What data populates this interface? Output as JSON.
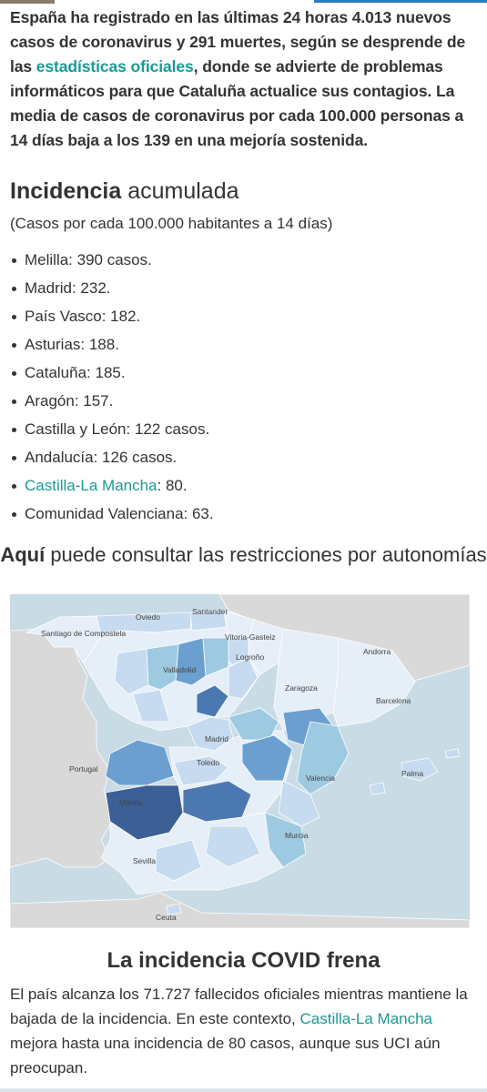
{
  "intro": {
    "part1": "España ha registrado en las últimas 24 horas 4.013 nuevos casos de coronavirus y 291 muertes, según se desprende de las ",
    "link": "estadísticas oficiales",
    "part2": ", donde se advierte de problemas informáticos para que Cataluña actualice sus contagios. La media de casos de coronavirus por cada 100.000 personas a 14 días baja a los 139 en una mejoría sostenida."
  },
  "incidence": {
    "title_bold": "Incidencia",
    "title_rest": " acumulada",
    "subtitle": "(Casos por cada 100.000 habitantes a 14 días)",
    "items": [
      {
        "text": "Melilla: 390 casos.",
        "value": 390
      },
      {
        "text": "Madrid: 232.",
        "value": 232
      },
      {
        "text": "País Vasco: 182.",
        "value": 182
      },
      {
        "text": "Asturias: 188.",
        "value": 188
      },
      {
        "text": "Cataluña: 185.",
        "value": 185
      },
      {
        "text": "Aragón: 157.",
        "value": 157
      },
      {
        "text": "Castilla y León: 122 casos.",
        "value": 122
      },
      {
        "text": "Andalucía: 126 casos.",
        "value": 126
      },
      {
        "link": "Castilla-La Mancha",
        "rest": ": 80.",
        "value": 80
      },
      {
        "text": "Comunidad Valenciana: 63.",
        "value": 63
      }
    ]
  },
  "consult": {
    "bold": "Aquí",
    "rest": " puede consultar las restricciones por autonomías"
  },
  "map": {
    "labels": {
      "oviedo": "Oviedo",
      "santander": "Santander",
      "santiago": "Santiago de Compostela",
      "vitoria": "Vitoria-Gasteiz",
      "logrono": "Logroño",
      "andorra": "Andorra",
      "valladolid": "Valladolid",
      "zaragoza": "Zaragoza",
      "barcelona": "Barcelona",
      "madrid": "Madrid",
      "portugal": "Portugal",
      "toledo": "Toledo",
      "valencia": "Valencia",
      "palma": "Palma",
      "merida": "Mérida",
      "sevilla": "Sevilla",
      "murcia": "Murcia",
      "ceuta": "Ceuta"
    },
    "colors": {
      "sea": "#c9dbe5",
      "neighbor": "#d9d9d9",
      "lightest": "#e6eef7",
      "light": "#c6dbef",
      "medium": "#9ecae1",
      "strong": "#6b9fd0",
      "darker": "#4c78b2",
      "darkest": "#3c5f95"
    }
  },
  "section2": {
    "title": "La incidencia COVID frena",
    "part1": "El país alcanza los 71.727 fallecidos oficiales mientras mantiene la bajada de la incidencia. En este contexto, ",
    "link": "Castilla-La Mancha",
    "part2": " mejora hasta una incidencia de 80 casos, aunque sus UCI aún preocupan."
  }
}
